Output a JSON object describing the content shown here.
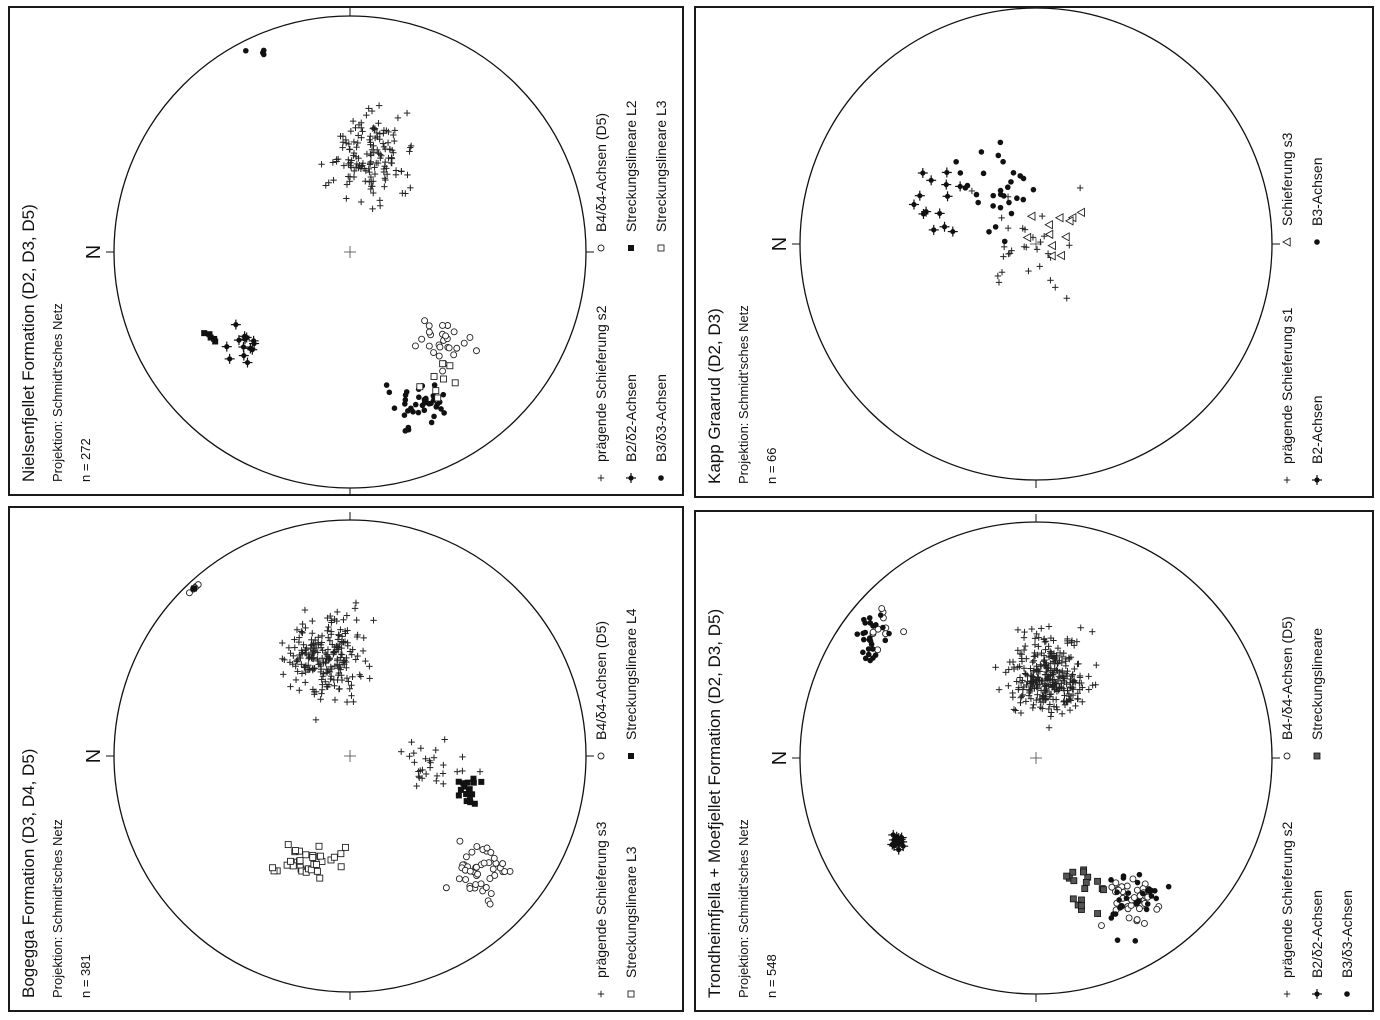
{
  "chart_data": [
    {
      "type": "scatter",
      "title": "Bogegga Formation (D3, D4, D5)",
      "projection": "Projektion:  Schmidt'sches Netz",
      "n": "n  =  381",
      "north": "N",
      "legend": [
        {
          "symbol": "plus",
          "label": "prägende Schieferung s3"
        },
        {
          "symbol": "circle-open",
          "label": "B4/δ4-Achsen  (D5)"
        },
        {
          "symbol": "square-open",
          "label": "Streckungslineare L3"
        },
        {
          "symbol": "square-filled",
          "label": "Streckungslineare L4"
        }
      ]
    },
    {
      "type": "scatter",
      "title": "Nielsenfjellet Formation (D2, D3, D5)",
      "projection": "Projektion:  Schmidt'sches Netz",
      "n": "n  =  272",
      "north": "N",
      "legend": [
        {
          "symbol": "plus",
          "label": "prägende Schieferung s2"
        },
        {
          "symbol": "circle-open",
          "label": "B4/δ4-Achsen  (D5)"
        },
        {
          "symbol": "star",
          "label": "B2/δ2-Achsen"
        },
        {
          "symbol": "square-filled",
          "label": "Streckungslineare  L2"
        },
        {
          "symbol": "dot",
          "label": "B3/δ3-Achsen"
        },
        {
          "symbol": "square-open",
          "label": "Streckungslineare  L3"
        }
      ]
    },
    {
      "type": "scatter",
      "title": "Trondheimfjella + Moefjellet Formation (D2, D3, D5)",
      "projection": "Projektion:  Schmidt'sches Netz",
      "n": "n  =  548",
      "north": "N",
      "legend": [
        {
          "symbol": "plus",
          "label": "prägende Schieferung s2"
        },
        {
          "symbol": "circle-open",
          "label": "B4-/δ4-Achsen  (D5)"
        },
        {
          "symbol": "star",
          "label": "B2/δ2-Achsen"
        },
        {
          "symbol": "square-grey",
          "label": "Streckungslineare"
        },
        {
          "symbol": "dot",
          "label": "B3/δ3-Achsen"
        }
      ]
    },
    {
      "type": "scatter",
      "title": "Kapp Graarud (D2, D3)",
      "projection": "Projektion:  Schmidt'sches Netz",
      "n": "n  =  66",
      "north": "N",
      "legend": [
        {
          "symbol": "plus",
          "label": "prägende Schieferung s1"
        },
        {
          "symbol": "triangle-open",
          "label": "Schieferung s3"
        },
        {
          "symbol": "star",
          "label": "B2-Achsen"
        },
        {
          "symbol": "dot",
          "label": "B3-Achsen"
        }
      ]
    }
  ]
}
